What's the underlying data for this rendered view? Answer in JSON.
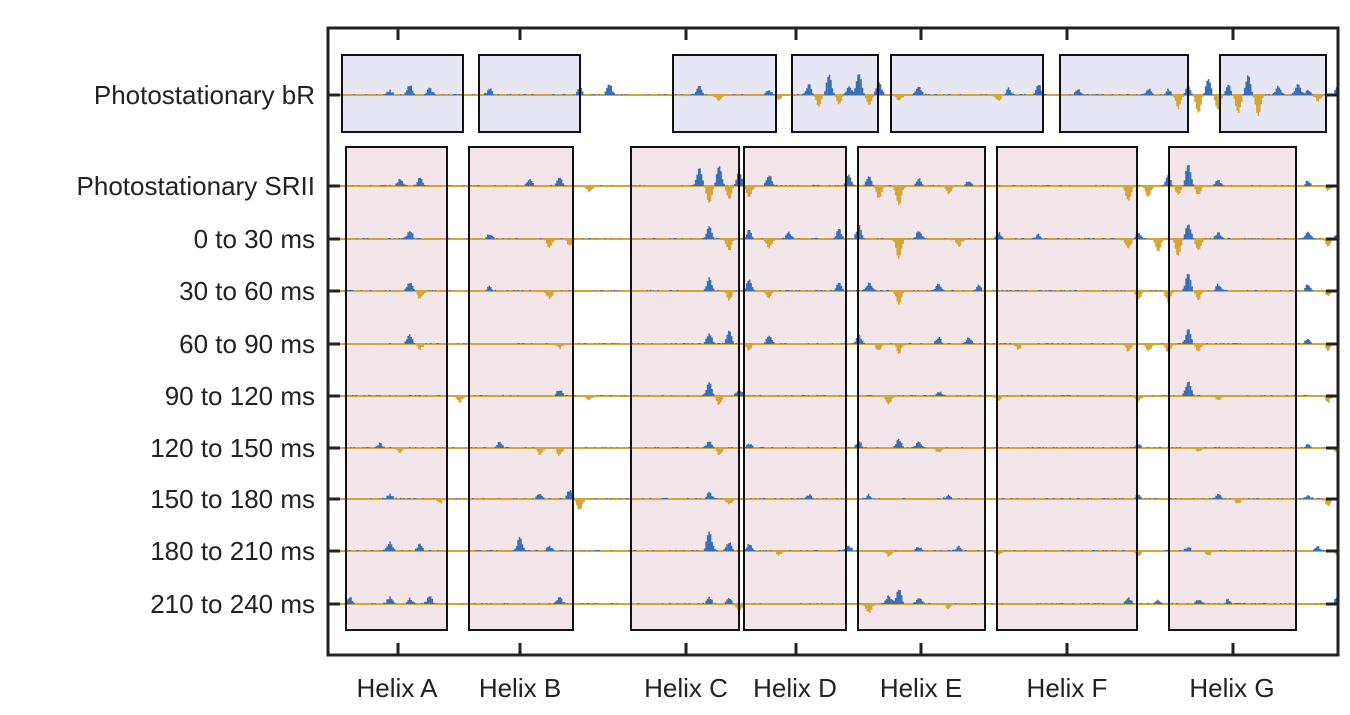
{
  "chart_data": {
    "type": "line",
    "title": "",
    "xlabel": "",
    "ylabel": "",
    "grid": false,
    "row_labels": [
      "Photostationary bR",
      "Photostationary SRII",
      "0 to 30 ms",
      "30 to 60 ms",
      "60 to 90 ms",
      "90 to 120 ms",
      "120 to 150 ms",
      "150 to 180 ms",
      "180 to 210 ms",
      "210 to 240 ms"
    ],
    "helix_labels": [
      "Helix A",
      "Helix B",
      "Helix C",
      "Helix D",
      "Helix E",
      "Helix F",
      "Helix G"
    ],
    "region_colors": {
      "bR": "#e6e6f5",
      "SRII": "#f2e6ea"
    },
    "series_colors": {
      "positive": "#3a6fb5",
      "negative": "#d4a537"
    },
    "traces": [
      {
        "row": "Photostationary bR",
        "peaks": [
          [
            0.05,
            0.2
          ],
          [
            0.07,
            0.45
          ],
          [
            0.09,
            0.3
          ],
          [
            0.15,
            0.3
          ],
          [
            0.24,
            0.35
          ],
          [
            0.27,
            0.5
          ],
          [
            0.36,
            0.45
          ],
          [
            0.38,
            -0.3
          ],
          [
            0.43,
            0.25
          ],
          [
            0.44,
            -0.2
          ],
          [
            0.47,
            0.5
          ],
          [
            0.48,
            -0.5
          ],
          [
            0.49,
            0.9
          ],
          [
            0.5,
            -0.4
          ],
          [
            0.51,
            0.4
          ],
          [
            0.52,
            1.0
          ],
          [
            0.53,
            -0.45
          ],
          [
            0.54,
            0.6
          ],
          [
            0.56,
            -0.3
          ],
          [
            0.58,
            0.4
          ],
          [
            0.66,
            -0.25
          ],
          [
            0.67,
            0.3
          ],
          [
            0.7,
            0.5
          ],
          [
            0.74,
            0.25
          ],
          [
            0.81,
            0.3
          ],
          [
            0.83,
            0.25
          ],
          [
            0.84,
            -0.6
          ],
          [
            0.85,
            0.4
          ],
          [
            0.86,
            -0.85
          ],
          [
            0.87,
            0.75
          ],
          [
            0.88,
            -0.7
          ],
          [
            0.89,
            0.5
          ],
          [
            0.9,
            -0.8
          ],
          [
            0.91,
            0.9
          ],
          [
            0.92,
            -0.9
          ],
          [
            0.94,
            0.4
          ],
          [
            0.96,
            0.5
          ],
          [
            0.97,
            0.25
          ],
          [
            0.98,
            -0.25
          ],
          [
            1.0,
            0.4
          ],
          [
            1.01,
            -0.7
          ],
          [
            1.02,
            0.9
          ],
          [
            1.03,
            -0.8
          ],
          [
            1.04,
            0.5
          ]
        ]
      },
      {
        "row": "Photostationary SRII",
        "peaks": [
          [
            0.06,
            0.3
          ],
          [
            0.08,
            0.4
          ],
          [
            0.19,
            0.3
          ],
          [
            0.22,
            0.4
          ],
          [
            0.25,
            -0.25
          ],
          [
            0.36,
            0.8
          ],
          [
            0.37,
            -0.8
          ],
          [
            0.38,
            0.9
          ],
          [
            0.39,
            -0.6
          ],
          [
            0.4,
            0.7
          ],
          [
            0.41,
            -0.5
          ],
          [
            0.43,
            0.5
          ],
          [
            0.51,
            0.5
          ],
          [
            0.53,
            0.4
          ],
          [
            0.54,
            -0.55
          ],
          [
            0.56,
            -0.9
          ],
          [
            0.58,
            0.35
          ],
          [
            0.61,
            -0.35
          ],
          [
            0.63,
            0.25
          ],
          [
            0.79,
            -0.7
          ],
          [
            0.81,
            -0.5
          ],
          [
            0.83,
            0.5
          ],
          [
            0.84,
            -0.4
          ],
          [
            0.85,
            1.0
          ],
          [
            0.86,
            -0.4
          ],
          [
            0.88,
            0.3
          ],
          [
            0.97,
            0.25
          ],
          [
            0.99,
            -0.2
          ],
          [
            1.02,
            0.2
          ]
        ]
      },
      {
        "row": "0 to 30 ms",
        "peaks": [
          [
            0.07,
            0.4
          ],
          [
            0.15,
            0.2
          ],
          [
            0.21,
            -0.4
          ],
          [
            0.23,
            -0.3
          ],
          [
            0.37,
            0.6
          ],
          [
            0.39,
            -0.5
          ],
          [
            0.41,
            0.4
          ],
          [
            0.43,
            -0.4
          ],
          [
            0.45,
            0.3
          ],
          [
            0.5,
            0.45
          ],
          [
            0.52,
            0.6
          ],
          [
            0.56,
            -0.9
          ],
          [
            0.58,
            0.4
          ],
          [
            0.62,
            -0.35
          ],
          [
            0.66,
            0.3
          ],
          [
            0.7,
            0.2
          ],
          [
            0.79,
            -0.45
          ],
          [
            0.8,
            0.3
          ],
          [
            0.82,
            -0.55
          ],
          [
            0.84,
            -0.8
          ],
          [
            0.85,
            0.7
          ],
          [
            0.86,
            -0.5
          ],
          [
            0.88,
            0.3
          ],
          [
            0.97,
            0.35
          ],
          [
            0.99,
            -0.35
          ],
          [
            1.0,
            0.25
          ],
          [
            1.01,
            -0.2
          ],
          [
            1.02,
            0.2
          ]
        ]
      },
      {
        "row": "30 to 60 ms",
        "peaks": [
          [
            0.07,
            0.4
          ],
          [
            0.08,
            -0.35
          ],
          [
            0.15,
            0.2
          ],
          [
            0.21,
            -0.35
          ],
          [
            0.37,
            0.6
          ],
          [
            0.39,
            -0.4
          ],
          [
            0.41,
            0.5
          ],
          [
            0.43,
            -0.3
          ],
          [
            0.5,
            0.4
          ],
          [
            0.53,
            0.35
          ],
          [
            0.56,
            -0.6
          ],
          [
            0.6,
            0.3
          ],
          [
            0.64,
            0.25
          ],
          [
            0.8,
            -0.4
          ],
          [
            0.83,
            -0.5
          ],
          [
            0.85,
            0.8
          ],
          [
            0.86,
            -0.4
          ],
          [
            0.88,
            0.3
          ],
          [
            0.97,
            0.3
          ],
          [
            0.99,
            -0.25
          ],
          [
            1.02,
            0.2
          ]
        ]
      },
      {
        "row": "60 to 90 ms",
        "peaks": [
          [
            0.07,
            0.4
          ],
          [
            0.08,
            -0.25
          ],
          [
            0.22,
            -0.2
          ],
          [
            0.37,
            0.5
          ],
          [
            0.39,
            0.6
          ],
          [
            0.41,
            -0.3
          ],
          [
            0.43,
            0.4
          ],
          [
            0.52,
            0.4
          ],
          [
            0.54,
            -0.3
          ],
          [
            0.56,
            -0.4
          ],
          [
            0.6,
            0.3
          ],
          [
            0.63,
            0.3
          ],
          [
            0.68,
            -0.25
          ],
          [
            0.79,
            -0.35
          ],
          [
            0.81,
            -0.35
          ],
          [
            0.83,
            -0.4
          ],
          [
            0.85,
            0.7
          ],
          [
            0.86,
            -0.3
          ],
          [
            0.97,
            0.25
          ],
          [
            0.99,
            -0.3
          ],
          [
            1.02,
            -0.25
          ]
        ]
      },
      {
        "row": "90 to 120 ms",
        "peaks": [
          [
            0.12,
            -0.3
          ],
          [
            0.22,
            0.3
          ],
          [
            0.25,
            -0.2
          ],
          [
            0.37,
            0.6
          ],
          [
            0.38,
            -0.4
          ],
          [
            0.4,
            0.3
          ],
          [
            0.55,
            -0.4
          ],
          [
            0.6,
            0.2
          ],
          [
            0.66,
            -0.2
          ],
          [
            0.8,
            -0.25
          ],
          [
            0.85,
            0.7
          ],
          [
            0.88,
            -0.2
          ],
          [
            0.99,
            -0.3
          ],
          [
            1.01,
            -0.35
          ],
          [
            1.02,
            0.2
          ]
        ]
      },
      {
        "row": "120 to 150 ms",
        "peaks": [
          [
            0.04,
            0.2
          ],
          [
            0.06,
            -0.2
          ],
          [
            0.16,
            0.25
          ],
          [
            0.2,
            -0.3
          ],
          [
            0.22,
            -0.35
          ],
          [
            0.37,
            0.3
          ],
          [
            0.38,
            -0.3
          ],
          [
            0.41,
            0.2
          ],
          [
            0.52,
            0.3
          ],
          [
            0.56,
            0.4
          ],
          [
            0.58,
            0.3
          ],
          [
            0.6,
            -0.2
          ],
          [
            0.8,
            0.2
          ],
          [
            0.86,
            -0.2
          ],
          [
            0.97,
            0.2
          ],
          [
            1.0,
            -0.25
          ]
        ]
      },
      {
        "row": "150 to 180 ms",
        "peaks": [
          [
            0.05,
            0.2
          ],
          [
            0.1,
            -0.2
          ],
          [
            0.2,
            0.2
          ],
          [
            0.23,
            0.4
          ],
          [
            0.24,
            -0.5
          ],
          [
            0.37,
            0.3
          ],
          [
            0.39,
            -0.25
          ],
          [
            0.47,
            0.2
          ],
          [
            0.53,
            0.2
          ],
          [
            0.61,
            0.2
          ],
          [
            0.8,
            0.2
          ],
          [
            0.88,
            0.25
          ],
          [
            0.9,
            -0.2
          ],
          [
            0.97,
            0.2
          ],
          [
            0.99,
            -0.3
          ],
          [
            1.01,
            0.4
          ],
          [
            1.02,
            -0.6
          ]
        ]
      },
      {
        "row": "180 to 210 ms",
        "peaks": [
          [
            0.05,
            0.4
          ],
          [
            0.08,
            0.3
          ],
          [
            0.18,
            0.6
          ],
          [
            0.21,
            0.2
          ],
          [
            0.37,
            0.9
          ],
          [
            0.39,
            0.4
          ],
          [
            0.41,
            0.3
          ],
          [
            0.44,
            -0.2
          ],
          [
            0.51,
            0.25
          ],
          [
            0.55,
            -0.25
          ],
          [
            0.58,
            0.2
          ],
          [
            0.62,
            0.2
          ],
          [
            0.66,
            -0.2
          ],
          [
            0.8,
            -0.2
          ],
          [
            0.85,
            0.2
          ],
          [
            0.87,
            -0.2
          ],
          [
            0.98,
            0.2
          ],
          [
            1.0,
            -0.2
          ]
        ]
      },
      {
        "row": "210 to 240 ms",
        "peaks": [
          [
            0.01,
            0.3
          ],
          [
            0.05,
            0.3
          ],
          [
            0.07,
            0.25
          ],
          [
            0.09,
            0.35
          ],
          [
            0.22,
            0.3
          ],
          [
            0.37,
            0.3
          ],
          [
            0.39,
            0.25
          ],
          [
            0.4,
            -0.3
          ],
          [
            0.53,
            -0.4
          ],
          [
            0.55,
            0.4
          ],
          [
            0.56,
            0.7
          ],
          [
            0.58,
            0.3
          ],
          [
            0.61,
            -0.2
          ],
          [
            0.79,
            0.3
          ],
          [
            0.82,
            0.2
          ],
          [
            0.86,
            0.2
          ],
          [
            0.89,
            0.2
          ],
          [
            1.0,
            0.4
          ]
        ]
      }
    ]
  }
}
